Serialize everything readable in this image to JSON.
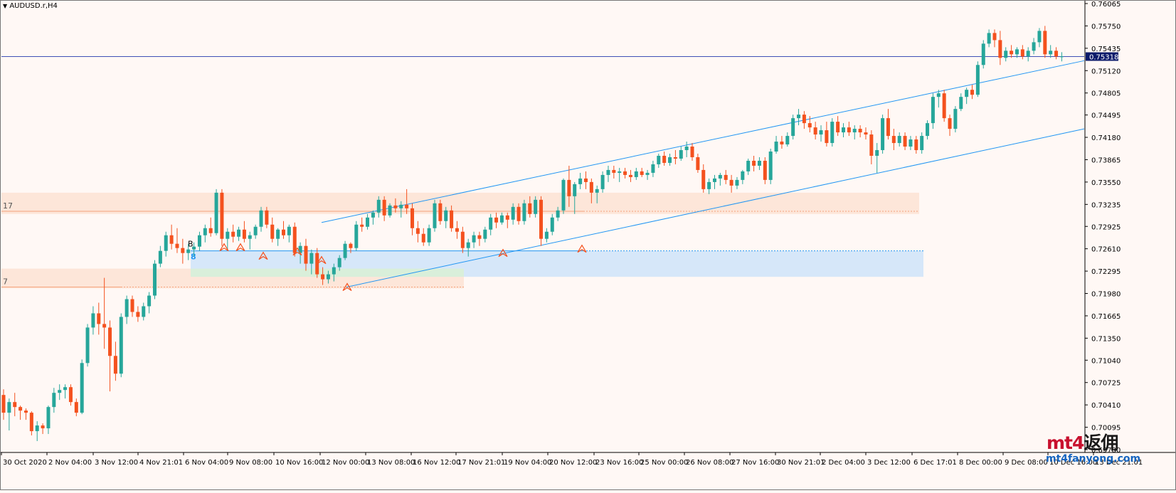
{
  "window": {
    "symbol_title": "AUDUSD.r,H4",
    "menu_icon": "triangle-down-icon"
  },
  "price_axis": {
    "labels": [
      "0.76065",
      "0.75750",
      "0.75435",
      "0.75120",
      "0.74805",
      "0.74495",
      "0.74180",
      "0.73865",
      "0.73550",
      "0.73235",
      "0.72925",
      "0.72610",
      "0.72295",
      "0.71980",
      "0.71665",
      "0.71350",
      "0.71040",
      "0.70725",
      "0.70410",
      "0.70095",
      "0.69780"
    ],
    "current_price": "0.75318"
  },
  "time_axis": {
    "labels": [
      "30 Oct 2020",
      "2 Nov 04:00",
      "3 Nov 12:00",
      "4 Nov 21:01",
      "6 Nov 04:00",
      "9 Nov 08:00",
      "10 Nov 16:00",
      "12 Nov 00:00",
      "13 Nov 08:00",
      "16 Nov 12:00",
      "17 Nov 21:01",
      "19 Nov 04:00",
      "20 Nov 12:00",
      "23 Nov 16:00",
      "25 Nov 00:00",
      "26 Nov 08:00",
      "27 Nov 16:00",
      "30 Nov 21:01",
      "2 Dec 04:00",
      "3 Dec 12:00",
      "6 Dec 17:01",
      "8 Dec 00:00",
      "9 Dec 08:00",
      "10 Dec 16:00",
      "13 Dec 21:01"
    ]
  },
  "zone_labels": {
    "upper_zone": "17",
    "lower_zone": "7",
    "support_zone": "8",
    "marker_b": "B"
  },
  "colors": {
    "bull": "#26a69a",
    "bear": "#f4511e",
    "background": "#fff8f5",
    "channel": "#2196f3",
    "price_line": "#3f51b5"
  },
  "watermark": {
    "line1_a": "mt4",
    "line1_b": "返佣",
    "line2": "mt4fanyong.com"
  },
  "chart_data": {
    "type": "candlestick",
    "title": "AUDUSD.r,H4",
    "ylim": [
      0.6978,
      0.76065
    ],
    "current_price": 0.75318,
    "ohlc": [
      [
        0.7055,
        0.7063,
        0.702,
        0.703
      ],
      [
        0.703,
        0.705,
        0.7005,
        0.7045
      ],
      [
        0.7045,
        0.7058,
        0.7025,
        0.7038
      ],
      [
        0.7038,
        0.704,
        0.702,
        0.7033
      ],
      [
        0.7033,
        0.7036,
        0.702,
        0.703
      ],
      [
        0.703,
        0.7032,
        0.6998,
        0.7004
      ],
      [
        0.7004,
        0.7018,
        0.699,
        0.7012
      ],
      [
        0.7012,
        0.7015,
        0.7,
        0.7008
      ],
      [
        0.7008,
        0.704,
        0.7,
        0.7038
      ],
      [
        0.7038,
        0.7065,
        0.703,
        0.7058
      ],
      [
        0.7058,
        0.707,
        0.7048,
        0.7062
      ],
      [
        0.7062,
        0.707,
        0.705,
        0.7066
      ],
      [
        0.7066,
        0.707,
        0.704,
        0.7045
      ],
      [
        0.7045,
        0.705,
        0.7025,
        0.703
      ],
      [
        0.703,
        0.7105,
        0.7028,
        0.71
      ],
      [
        0.71,
        0.7155,
        0.7095,
        0.715
      ],
      [
        0.715,
        0.718,
        0.714,
        0.717
      ],
      [
        0.717,
        0.7185,
        0.714,
        0.7155
      ],
      [
        0.7155,
        0.722,
        0.712,
        0.715
      ],
      [
        0.715,
        0.716,
        0.706,
        0.711
      ],
      [
        0.711,
        0.713,
        0.7075,
        0.7085
      ],
      [
        0.7085,
        0.717,
        0.708,
        0.7165
      ],
      [
        0.7165,
        0.7195,
        0.7155,
        0.719
      ],
      [
        0.719,
        0.7195,
        0.7165,
        0.7172
      ],
      [
        0.7172,
        0.718,
        0.7158,
        0.7165
      ],
      [
        0.7165,
        0.7185,
        0.716,
        0.718
      ],
      [
        0.718,
        0.72,
        0.717,
        0.7195
      ],
      [
        0.7195,
        0.7245,
        0.719,
        0.724
      ],
      [
        0.724,
        0.7265,
        0.7235,
        0.7258
      ],
      [
        0.7258,
        0.7285,
        0.725,
        0.728
      ],
      [
        0.728,
        0.7295,
        0.726,
        0.7268
      ],
      [
        0.7268,
        0.729,
        0.7255,
        0.7262
      ],
      [
        0.7262,
        0.7275,
        0.724,
        0.7255
      ],
      [
        0.7255,
        0.7268,
        0.7245,
        0.726
      ],
      [
        0.726,
        0.727,
        0.725,
        0.7264
      ],
      [
        0.7264,
        0.7285,
        0.7258,
        0.728
      ],
      [
        0.728,
        0.7295,
        0.727,
        0.729
      ],
      [
        0.729,
        0.7305,
        0.7278,
        0.7283
      ],
      [
        0.7283,
        0.7345,
        0.728,
        0.734
      ],
      [
        0.734,
        0.7345,
        0.7265,
        0.7275
      ],
      [
        0.7275,
        0.729,
        0.726,
        0.7285
      ],
      [
        0.7285,
        0.7295,
        0.727,
        0.7278
      ],
      [
        0.7278,
        0.7292,
        0.7272,
        0.7288
      ],
      [
        0.7288,
        0.73,
        0.727,
        0.7275
      ],
      [
        0.7275,
        0.7285,
        0.726,
        0.728
      ],
      [
        0.728,
        0.7295,
        0.7275,
        0.7292
      ],
      [
        0.7292,
        0.732,
        0.7285,
        0.7315
      ],
      [
        0.7315,
        0.732,
        0.729,
        0.7295
      ],
      [
        0.7295,
        0.7305,
        0.727,
        0.7275
      ],
      [
        0.7275,
        0.729,
        0.7265,
        0.7288
      ],
      [
        0.7288,
        0.73,
        0.7275,
        0.728
      ],
      [
        0.728,
        0.7295,
        0.727,
        0.7292
      ],
      [
        0.7292,
        0.7298,
        0.725,
        0.7255
      ],
      [
        0.7255,
        0.727,
        0.724,
        0.7265
      ],
      [
        0.7265,
        0.7275,
        0.723,
        0.724
      ],
      [
        0.724,
        0.726,
        0.7225,
        0.7255
      ],
      [
        0.7255,
        0.7262,
        0.722,
        0.7225
      ],
      [
        0.7225,
        0.7235,
        0.721,
        0.7218
      ],
      [
        0.7218,
        0.723,
        0.7212,
        0.7225
      ],
      [
        0.7225,
        0.724,
        0.7215,
        0.7235
      ],
      [
        0.7235,
        0.7252,
        0.723,
        0.7248
      ],
      [
        0.7248,
        0.7272,
        0.7245,
        0.7268
      ],
      [
        0.7268,
        0.727,
        0.7255,
        0.7262
      ],
      [
        0.7262,
        0.73,
        0.7258,
        0.7295
      ],
      [
        0.7295,
        0.7305,
        0.7285,
        0.7292
      ],
      [
        0.7292,
        0.731,
        0.7288,
        0.7305
      ],
      [
        0.7305,
        0.7315,
        0.7295,
        0.7312
      ],
      [
        0.7312,
        0.7335,
        0.7305,
        0.733
      ],
      [
        0.733,
        0.7335,
        0.73,
        0.7308
      ],
      [
        0.7308,
        0.7325,
        0.7305,
        0.7322
      ],
      [
        0.7322,
        0.7332,
        0.7312,
        0.7318
      ],
      [
        0.7318,
        0.7328,
        0.7305,
        0.7323
      ],
      [
        0.7323,
        0.7345,
        0.731,
        0.7318
      ],
      [
        0.7318,
        0.7325,
        0.728,
        0.729
      ],
      [
        0.729,
        0.73,
        0.727,
        0.7282
      ],
      [
        0.7282,
        0.729,
        0.7265,
        0.727
      ],
      [
        0.727,
        0.7295,
        0.7265,
        0.729
      ],
      [
        0.729,
        0.733,
        0.7285,
        0.7325
      ],
      [
        0.7325,
        0.733,
        0.7295,
        0.73
      ],
      [
        0.73,
        0.732,
        0.729,
        0.7315
      ],
      [
        0.7315,
        0.7322,
        0.7285,
        0.729
      ],
      [
        0.729,
        0.73,
        0.7275,
        0.7285
      ],
      [
        0.7285,
        0.7292,
        0.7255,
        0.7262
      ],
      [
        0.7262,
        0.7275,
        0.725,
        0.727
      ],
      [
        0.727,
        0.7285,
        0.7262,
        0.728
      ],
      [
        0.728,
        0.7285,
        0.7265,
        0.7275
      ],
      [
        0.7275,
        0.7292,
        0.727,
        0.7288
      ],
      [
        0.7288,
        0.731,
        0.728,
        0.7305
      ],
      [
        0.7305,
        0.7312,
        0.729,
        0.7298
      ],
      [
        0.7298,
        0.7312,
        0.7295,
        0.7308
      ],
      [
        0.7308,
        0.7312,
        0.729,
        0.7302
      ],
      [
        0.7302,
        0.7325,
        0.7295,
        0.732
      ],
      [
        0.732,
        0.7325,
        0.7295,
        0.73
      ],
      [
        0.73,
        0.733,
        0.7295,
        0.7325
      ],
      [
        0.7325,
        0.7335,
        0.7305,
        0.731
      ],
      [
        0.731,
        0.7335,
        0.7305,
        0.733
      ],
      [
        0.733,
        0.7335,
        0.7265,
        0.7275
      ],
      [
        0.7275,
        0.729,
        0.727,
        0.7285
      ],
      [
        0.7285,
        0.731,
        0.728,
        0.7305
      ],
      [
        0.7305,
        0.732,
        0.73,
        0.7315
      ],
      [
        0.7315,
        0.736,
        0.731,
        0.7358
      ],
      [
        0.7358,
        0.7378,
        0.732,
        0.7335
      ],
      [
        0.7335,
        0.7355,
        0.731,
        0.7352
      ],
      [
        0.7352,
        0.7368,
        0.7345,
        0.736
      ],
      [
        0.736,
        0.737,
        0.7345,
        0.7355
      ],
      [
        0.7355,
        0.736,
        0.7325,
        0.734
      ],
      [
        0.734,
        0.735,
        0.7325,
        0.7345
      ],
      [
        0.7345,
        0.737,
        0.734,
        0.7365
      ],
      [
        0.7365,
        0.7378,
        0.7355,
        0.7372
      ],
      [
        0.7372,
        0.7378,
        0.736,
        0.7368
      ],
      [
        0.7368,
        0.7375,
        0.7355,
        0.737
      ],
      [
        0.737,
        0.7375,
        0.736,
        0.7365
      ],
      [
        0.7365,
        0.7372,
        0.7355,
        0.7362
      ],
      [
        0.7362,
        0.7375,
        0.7358,
        0.737
      ],
      [
        0.737,
        0.7375,
        0.7362,
        0.7365
      ],
      [
        0.7365,
        0.7372,
        0.7358,
        0.7368
      ],
      [
        0.7368,
        0.7385,
        0.7362,
        0.738
      ],
      [
        0.738,
        0.7395,
        0.7375,
        0.7392
      ],
      [
        0.7392,
        0.7398,
        0.7378,
        0.7382
      ],
      [
        0.7382,
        0.7395,
        0.7378,
        0.739
      ],
      [
        0.739,
        0.74,
        0.738,
        0.7388
      ],
      [
        0.7388,
        0.7405,
        0.7385,
        0.74
      ],
      [
        0.74,
        0.7412,
        0.739,
        0.7405
      ],
      [
        0.7405,
        0.741,
        0.7385,
        0.739
      ],
      [
        0.739,
        0.7395,
        0.7368,
        0.7372
      ],
      [
        0.7372,
        0.738,
        0.734,
        0.7345
      ],
      [
        0.7345,
        0.736,
        0.7338,
        0.7355
      ],
      [
        0.7355,
        0.7365,
        0.7345,
        0.736
      ],
      [
        0.736,
        0.7368,
        0.735,
        0.7365
      ],
      [
        0.7365,
        0.7372,
        0.7352,
        0.7358
      ],
      [
        0.7358,
        0.7365,
        0.734,
        0.735
      ],
      [
        0.735,
        0.7362,
        0.7345,
        0.7358
      ],
      [
        0.7358,
        0.7372,
        0.7352,
        0.737
      ],
      [
        0.737,
        0.7388,
        0.7365,
        0.7385
      ],
      [
        0.7385,
        0.7392,
        0.737,
        0.7378
      ],
      [
        0.7378,
        0.739,
        0.7372,
        0.7385
      ],
      [
        0.7385,
        0.739,
        0.7352,
        0.7358
      ],
      [
        0.7358,
        0.7402,
        0.7352,
        0.7398
      ],
      [
        0.7398,
        0.742,
        0.7395,
        0.7412
      ],
      [
        0.7412,
        0.742,
        0.7402,
        0.7408
      ],
      [
        0.7408,
        0.7425,
        0.7405,
        0.742
      ],
      [
        0.742,
        0.745,
        0.7415,
        0.7445
      ],
      [
        0.7445,
        0.7458,
        0.7435,
        0.745
      ],
      [
        0.745,
        0.7455,
        0.743,
        0.7438
      ],
      [
        0.7438,
        0.7448,
        0.7425,
        0.7432
      ],
      [
        0.7432,
        0.744,
        0.7415,
        0.7422
      ],
      [
        0.7422,
        0.7435,
        0.7412,
        0.7428
      ],
      [
        0.7428,
        0.744,
        0.7405,
        0.741
      ],
      [
        0.741,
        0.7445,
        0.7405,
        0.744
      ],
      [
        0.744,
        0.7448,
        0.742,
        0.7425
      ],
      [
        0.7425,
        0.7438,
        0.7418,
        0.7432
      ],
      [
        0.7432,
        0.744,
        0.742,
        0.7425
      ],
      [
        0.7425,
        0.7435,
        0.7415,
        0.743
      ],
      [
        0.743,
        0.7435,
        0.7418,
        0.7425
      ],
      [
        0.7425,
        0.7432,
        0.7415,
        0.7422
      ],
      [
        0.7422,
        0.7428,
        0.738,
        0.7392
      ],
      [
        0.7392,
        0.741,
        0.7368,
        0.74
      ],
      [
        0.74,
        0.745,
        0.7395,
        0.7445
      ],
      [
        0.7445,
        0.7458,
        0.7415,
        0.742
      ],
      [
        0.742,
        0.743,
        0.74,
        0.741
      ],
      [
        0.741,
        0.7425,
        0.7405,
        0.742
      ],
      [
        0.742,
        0.7425,
        0.74,
        0.7405
      ],
      [
        0.7405,
        0.742,
        0.74,
        0.7415
      ],
      [
        0.7415,
        0.742,
        0.7395,
        0.74
      ],
      [
        0.74,
        0.7425,
        0.7395,
        0.742
      ],
      [
        0.742,
        0.7442,
        0.7415,
        0.7438
      ],
      [
        0.7438,
        0.748,
        0.743,
        0.7475
      ],
      [
        0.7475,
        0.7485,
        0.746,
        0.748
      ],
      [
        0.748,
        0.7485,
        0.744,
        0.7445
      ],
      [
        0.7445,
        0.745,
        0.742,
        0.743
      ],
      [
        0.743,
        0.7462,
        0.7425,
        0.7458
      ],
      [
        0.7458,
        0.748,
        0.7455,
        0.7475
      ],
      [
        0.7475,
        0.7488,
        0.7465,
        0.7485
      ],
      [
        0.7485,
        0.7492,
        0.7472,
        0.7478
      ],
      [
        0.7478,
        0.7525,
        0.7475,
        0.752
      ],
      [
        0.752,
        0.7555,
        0.7515,
        0.755
      ],
      [
        0.755,
        0.757,
        0.7545,
        0.7565
      ],
      [
        0.7565,
        0.757,
        0.7545,
        0.7555
      ],
      [
        0.7555,
        0.7568,
        0.752,
        0.753
      ],
      [
        0.753,
        0.7545,
        0.7525,
        0.754
      ],
      [
        0.754,
        0.7548,
        0.753,
        0.7535
      ],
      [
        0.7535,
        0.7545,
        0.753,
        0.7542
      ],
      [
        0.7542,
        0.7548,
        0.7528,
        0.7532
      ],
      [
        0.7532,
        0.7545,
        0.7525,
        0.754
      ],
      [
        0.754,
        0.7558,
        0.7535,
        0.7552
      ],
      [
        0.7552,
        0.7572,
        0.7545,
        0.7568
      ],
      [
        0.7568,
        0.7575,
        0.753,
        0.7535
      ],
      [
        0.7535,
        0.7548,
        0.753,
        0.754
      ],
      [
        0.754,
        0.7545,
        0.7528,
        0.7532
      ],
      [
        0.7532,
        0.7538,
        0.7525,
        0.7532
      ]
    ],
    "channel": {
      "upper": [
        [
          0.7298,
          0.7528
        ]
      ],
      "lower": [
        [
          0.721,
          0.743
        ]
      ]
    },
    "current_price_line": 0.75318
  }
}
